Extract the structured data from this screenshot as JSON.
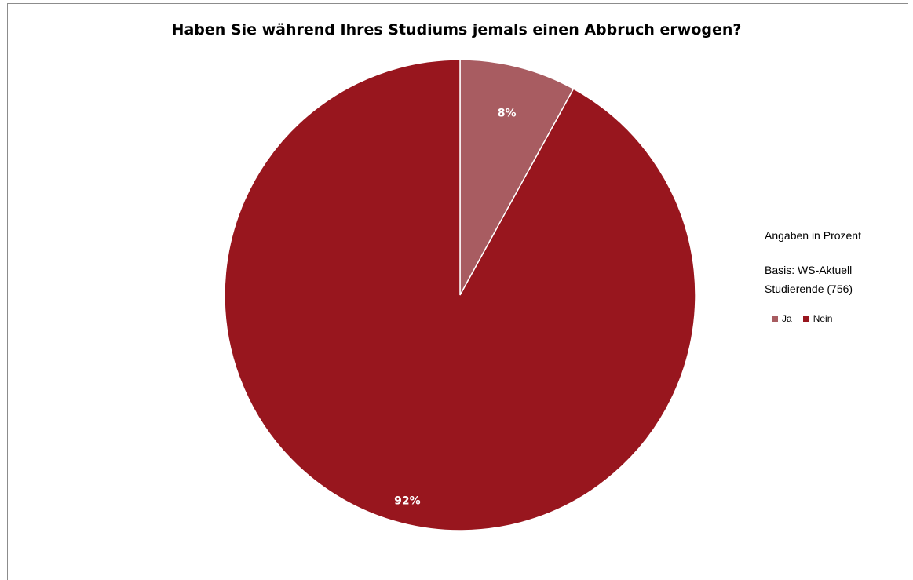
{
  "chart_data": {
    "type": "pie",
    "title": "Haben Sie während Ihres Studiums jemals einen Abbruch erwogen?",
    "categories": [
      "Ja",
      "Nein"
    ],
    "values": [
      8,
      92
    ],
    "data_labels": [
      "8%",
      "92%"
    ],
    "colors": [
      "#a85c61",
      "#98161e"
    ],
    "legend_position": "right",
    "notes": [
      "Angaben in Prozent",
      "Basis: WS-Aktuell",
      "Studierende (756)"
    ]
  }
}
